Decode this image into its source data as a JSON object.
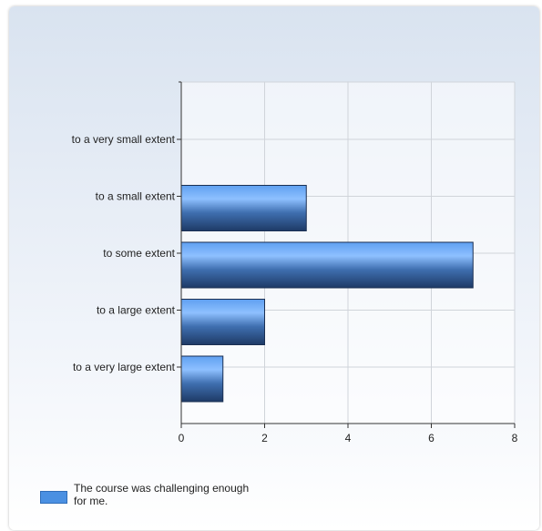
{
  "chart_data": {
    "type": "bar",
    "orientation": "horizontal",
    "categories": [
      "to a very small extent",
      "to a small extent",
      "to some extent",
      "to a large extent",
      "to a very large extent"
    ],
    "series": [
      {
        "name": "The course was challenging enough for me.",
        "values": [
          0,
          3,
          7,
          2,
          1
        ]
      }
    ],
    "xlim": [
      0,
      8
    ],
    "xticks": [
      0,
      2,
      4,
      6,
      8
    ],
    "grid": true,
    "legend_position": "bottom-left",
    "bar_color": "#4a90e2",
    "bar_color_dark": "#1e3a66"
  },
  "legend": {
    "label": "The course was challenging enough for me."
  }
}
